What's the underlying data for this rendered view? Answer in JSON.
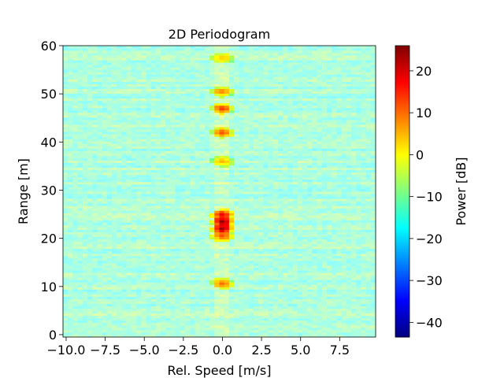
{
  "chart_data": {
    "type": "heatmap",
    "title": "2D Periodogram",
    "xlabel": "Rel. Speed [m/s]",
    "ylabel": "Range [m]",
    "colorbar_label": "Power [dB]",
    "colormap": "jet",
    "xlim": [
      -10.2,
      9.8
    ],
    "ylim": [
      -0.5,
      60
    ],
    "x_ticks": [
      -10.0,
      -7.5,
      -5.0,
      -2.5,
      0.0,
      2.5,
      5.0,
      7.5
    ],
    "x_tick_labels": [
      "−10.0",
      "−7.5",
      "−5.0",
      "−2.5",
      "0.0",
      "2.5",
      "5.0",
      "7.5"
    ],
    "y_ticks": [
      0,
      10,
      20,
      30,
      40,
      50,
      60
    ],
    "y_tick_labels": [
      "0",
      "10",
      "20",
      "30",
      "40",
      "50",
      "60"
    ],
    "clim": [
      -43.5,
      26
    ],
    "colorbar_ticks": [
      -40,
      -30,
      -20,
      -10,
      0,
      10,
      20
    ],
    "colorbar_tick_labels": [
      "−40",
      "−30",
      "−20",
      "−10",
      "0",
      "10",
      "20"
    ],
    "grid": false,
    "background_level_db": -12,
    "peaks": [
      {
        "range_m": 23.5,
        "speed_mps": 0.0,
        "power_db": 25
      },
      {
        "range_m": 22.0,
        "speed_mps": 0.0,
        "power_db": 24
      },
      {
        "range_m": 25.0,
        "speed_mps": 0.0,
        "power_db": 18
      },
      {
        "range_m": 20.5,
        "speed_mps": 0.0,
        "power_db": 12
      },
      {
        "range_m": 10.7,
        "speed_mps": 0.0,
        "power_db": 10
      },
      {
        "range_m": 42.0,
        "speed_mps": 0.0,
        "power_db": 12
      },
      {
        "range_m": 47.0,
        "speed_mps": 0.0,
        "power_db": 14
      },
      {
        "range_m": 50.5,
        "speed_mps": 0.0,
        "power_db": 8
      },
      {
        "range_m": 36.0,
        "speed_mps": 0.0,
        "power_db": 5
      },
      {
        "range_m": 57.5,
        "speed_mps": 0.0,
        "power_db": 3
      }
    ]
  }
}
